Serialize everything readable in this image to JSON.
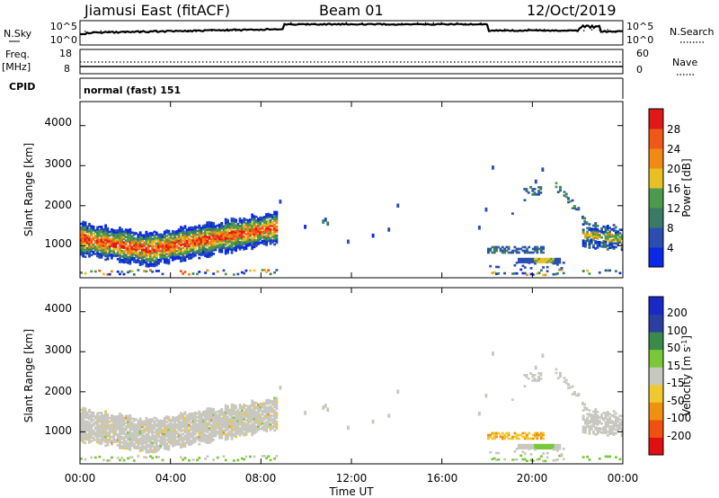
{
  "header": {
    "station": "Jiamusi East (fitACF)",
    "beam": "Beam 01",
    "date": "12/Oct/2019"
  },
  "top_panel": {
    "left_label": "N.Sky",
    "right_label": "N.Search",
    "left_ticks": [
      "10^5",
      "10^0"
    ],
    "right_ticks": [
      "10^5",
      "10^0"
    ]
  },
  "freq_panel": {
    "label_line1": "Freq.",
    "label_line2": "[MHz]",
    "left_ticks": [
      "18",
      "8"
    ],
    "right_ticks": [
      "60",
      "0"
    ],
    "right_label": "Nave"
  },
  "cpid_panel": {
    "label": "CPID",
    "text": "normal (fast) 151"
  },
  "colors": {
    "power": [
      "#0a28e6",
      "#2a4fb0",
      "#3a7a66",
      "#4c9a4c",
      "#e8c024",
      "#f08a14",
      "#f05818",
      "#e01818"
    ],
    "velocity": [
      "#e01010",
      "#f05010",
      "#f09010",
      "#f0c830",
      "#c8c8c0",
      "#78c838",
      "#3a8a4c",
      "#2a3fa0",
      "#1a28c8"
    ]
  },
  "chart_data": [
    {
      "type": "heatmap",
      "panel": "power",
      "xlabel": "",
      "ylabel": "Slant Range [km]",
      "y_ticks": [
        "1000",
        "2000",
        "3000",
        "4000"
      ],
      "ylim": [
        200,
        4600
      ],
      "x_range_hours": [
        0,
        24
      ],
      "colorbar_label": "Power [dB]",
      "colorbar_ticks": [
        "4",
        "8",
        "12",
        "16",
        "20",
        "24",
        "28"
      ],
      "colorbar_range": [
        0,
        32
      ],
      "description": "Strong band at ~1000-1400 km from 00:00 to 08:30; scattered echoes after 18:00"
    },
    {
      "type": "heatmap",
      "panel": "velocity",
      "xlabel": "Time UT",
      "ylabel": "Slant Range [km]",
      "y_ticks": [
        "1000",
        "2000",
        "3000",
        "4000"
      ],
      "ylim": [
        200,
        4600
      ],
      "x_ticks": [
        "00:00",
        "04:00",
        "08:00",
        "12:00",
        "16:00",
        "20:00",
        "00:00"
      ],
      "x_range_hours": [
        0,
        24
      ],
      "colorbar_label": "Velocity [m s^-1]",
      "colorbar_ticks": [
        "-200",
        "-100",
        "-50",
        "-15",
        "15",
        "50",
        "100",
        "200"
      ]
    }
  ]
}
